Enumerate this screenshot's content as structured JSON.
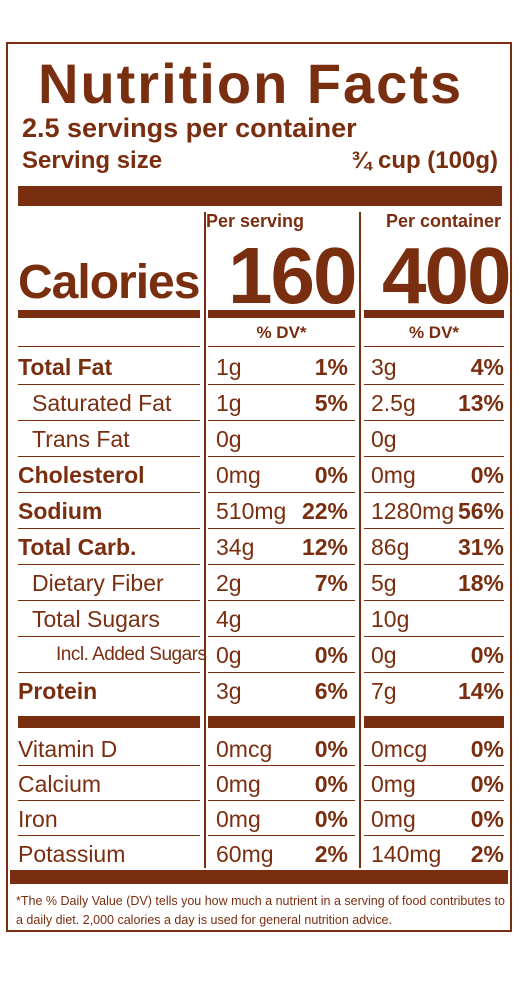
{
  "colors": {
    "brown": "#7a2e10",
    "background": "#ffffff"
  },
  "title": "Nutrition Facts",
  "servings_per_container": "2.5 servings per container",
  "serving_size": {
    "label": "Serving size",
    "value": "¾ cup (100g)"
  },
  "columns": [
    {
      "heading": "Per serving",
      "calories": "160"
    },
    {
      "heading": "Per container",
      "calories": "400"
    }
  ],
  "calories_label": "Calories",
  "dv_header": "% DV*",
  "nutrients": [
    {
      "label": "Total Fat",
      "bold": true,
      "indent": 0,
      "serving": {
        "amount": "1g",
        "dv": "1%"
      },
      "container": {
        "amount": "3g",
        "dv": "4%"
      }
    },
    {
      "label": "Saturated Fat",
      "bold": false,
      "indent": 1,
      "serving": {
        "amount": "1g",
        "dv": "5%"
      },
      "container": {
        "amount": "2.5g",
        "dv": "13%"
      }
    },
    {
      "label": "Trans Fat",
      "bold": false,
      "indent": 1,
      "serving": {
        "amount": "0g",
        "dv": ""
      },
      "container": {
        "amount": "0g",
        "dv": ""
      }
    },
    {
      "label": "Cholesterol",
      "bold": true,
      "indent": 0,
      "serving": {
        "amount": "0mg",
        "dv": "0%"
      },
      "container": {
        "amount": "0mg",
        "dv": "0%"
      }
    },
    {
      "label": "Sodium",
      "bold": true,
      "indent": 0,
      "serving": {
        "amount": "510mg",
        "dv": "22%"
      },
      "container": {
        "amount": "1280mg",
        "dv": "56%"
      }
    },
    {
      "label": "Total Carb.",
      "bold": true,
      "indent": 0,
      "serving": {
        "amount": "34g",
        "dv": "12%"
      },
      "container": {
        "amount": "86g",
        "dv": "31%"
      }
    },
    {
      "label": "Dietary Fiber",
      "bold": false,
      "indent": 1,
      "serving": {
        "amount": "2g",
        "dv": "7%"
      },
      "container": {
        "amount": "5g",
        "dv": "18%"
      }
    },
    {
      "label": "Total Sugars",
      "bold": false,
      "indent": 1,
      "serving": {
        "amount": "4g",
        "dv": ""
      },
      "container": {
        "amount": "10g",
        "dv": ""
      }
    },
    {
      "label": "Incl. Added Sugars",
      "bold": false,
      "indent": 2,
      "serving": {
        "amount": "0g",
        "dv": "0%"
      },
      "container": {
        "amount": "0g",
        "dv": "0%"
      }
    },
    {
      "label": "Protein",
      "bold": true,
      "indent": 0,
      "serving": {
        "amount": "3g",
        "dv": "6%"
      },
      "container": {
        "amount": "7g",
        "dv": "14%"
      }
    }
  ],
  "vitamins": [
    {
      "label": "Vitamin D",
      "serving": {
        "amount": "0mcg",
        "dv": "0%"
      },
      "container": {
        "amount": "0mcg",
        "dv": "0%"
      }
    },
    {
      "label": "Calcium",
      "serving": {
        "amount": "0mg",
        "dv": "0%"
      },
      "container": {
        "amount": "0mg",
        "dv": "0%"
      }
    },
    {
      "label": "Iron",
      "serving": {
        "amount": "0mg",
        "dv": "0%"
      },
      "container": {
        "amount": "0mg",
        "dv": "0%"
      }
    },
    {
      "label": "Potassium",
      "serving": {
        "amount": "60mg",
        "dv": "2%"
      },
      "container": {
        "amount": "140mg",
        "dv": "2%"
      }
    }
  ],
  "footnote": "*The % Daily Value (DV) tells you how much a nutrient in a serving of food contributes to a daily diet. 2,000 calories a day is used for general nutrition advice."
}
